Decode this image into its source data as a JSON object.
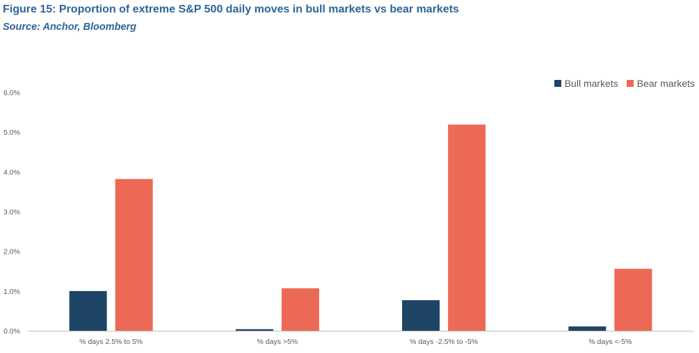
{
  "figure": {
    "title": "Figure 15: Proportion of extreme S&P 500 daily moves in bull markets vs bear markets",
    "source": "Source: Anchor, Bloomberg"
  },
  "colors": {
    "bull": "#1f4566",
    "bear": "#ec6a55",
    "title": "#2f6497",
    "axis_text": "#595959",
    "axis_line": "#bfbfbf"
  },
  "chart_data": {
    "type": "bar",
    "categories": [
      "% days 2.5% to 5%",
      "% days >5%",
      "% days -2.5% to -5%",
      "% days <-5%"
    ],
    "series": [
      {
        "name": "Bull markets",
        "values": [
          1.0,
          0.04,
          0.77,
          0.11
        ]
      },
      {
        "name": "Bear markets",
        "values": [
          3.82,
          1.07,
          5.19,
          1.56
        ]
      }
    ],
    "ylim": [
      0,
      6
    ],
    "yticks": [
      "0.0%",
      "1.0%",
      "2.0%",
      "3.0%",
      "4.0%",
      "5.0%",
      "6.0%"
    ],
    "grid": false,
    "legend_position": "top-right",
    "xlabel": "",
    "ylabel": ""
  }
}
